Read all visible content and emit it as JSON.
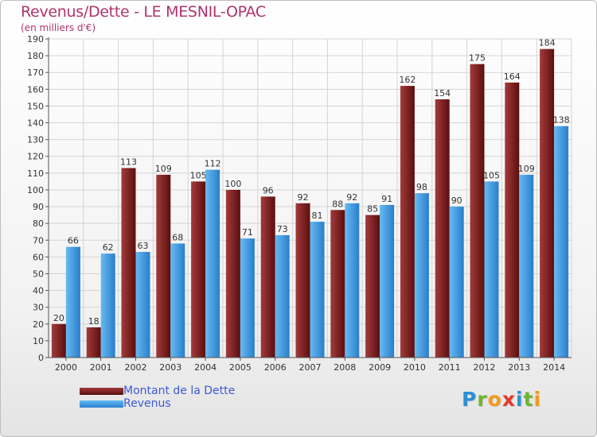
{
  "header": {
    "title": "Revenus/Dette - LE MESNIL-OPAC",
    "subtitle": "(en milliers d'€)"
  },
  "legend": {
    "items": [
      {
        "label": "Montant de la Dette",
        "color": "#6b1414"
      },
      {
        "label": "Revenus",
        "color": "#3f97de"
      }
    ]
  },
  "logo": {
    "letters": [
      {
        "char": "P",
        "color": "#2d8fd5"
      },
      {
        "char": "r",
        "color": "#6fb432"
      },
      {
        "char": "o",
        "color": "#f39a1e"
      },
      {
        "char": "x",
        "color": "#e43a2c"
      },
      {
        "char": "i",
        "color": "#2d8fd5"
      },
      {
        "char": "t",
        "color": "#6fb432"
      },
      {
        "char": "i",
        "color": "#f39a1e"
      }
    ]
  },
  "colors": {
    "title": "#b0336b",
    "grid": "#d4d4d4",
    "axis": "#555555",
    "dette_light": "#9e3a3a",
    "dette_dark": "#5e0f0f",
    "revenus_light": "#5cb2ee",
    "revenus_dark": "#2a7fcb"
  },
  "chart_data": {
    "type": "bar",
    "categories": [
      "2000",
      "2001",
      "2002",
      "2003",
      "2004",
      "2005",
      "2006",
      "2007",
      "2008",
      "2009",
      "2010",
      "2011",
      "2012",
      "2013",
      "2014"
    ],
    "series": [
      {
        "name": "Montant de la Dette",
        "values": [
          20,
          18,
          113,
          109,
          105,
          100,
          96,
          92,
          88,
          85,
          162,
          154,
          175,
          164,
          184
        ]
      },
      {
        "name": "Revenus",
        "values": [
          66,
          62,
          63,
          68,
          112,
          71,
          73,
          81,
          92,
          91,
          98,
          90,
          105,
          109,
          138
        ]
      }
    ],
    "ylim": [
      0,
      190
    ],
    "yticks": [
      0,
      10,
      20,
      30,
      40,
      50,
      60,
      70,
      80,
      90,
      100,
      110,
      120,
      130,
      140,
      150,
      160,
      170,
      180,
      190
    ],
    "grid": true,
    "legend_position": "bottom-left"
  }
}
